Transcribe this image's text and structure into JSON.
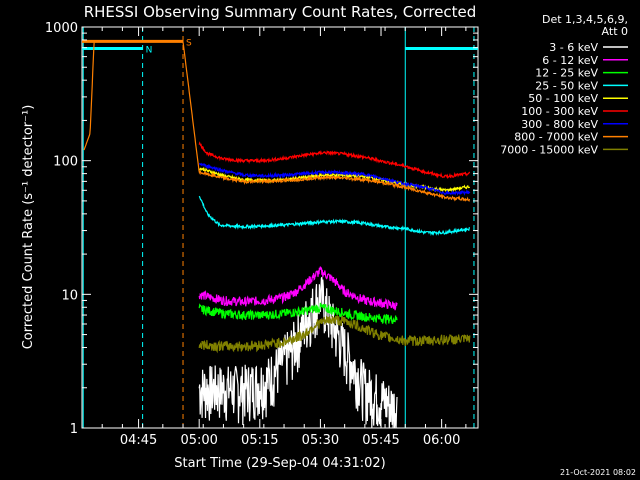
{
  "chart_data": {
    "type": "line",
    "title": "RHESSI Observing Summary Count Rates, Corrected",
    "xlabel": "Start Time (29-Sep-04 04:31:02)",
    "ylabel": "Corrected Count Rate (s⁻¹ detector⁻¹)",
    "yscale": "log",
    "ylim": [
      1,
      1000
    ],
    "xlim_minutes_after_0431": [
      0,
      98
    ],
    "x_ticks": [
      {
        "label": "04:45",
        "min": 14
      },
      {
        "label": "05:00",
        "min": 29
      },
      {
        "label": "05:15",
        "min": 44
      },
      {
        "label": "05:30",
        "min": 59
      },
      {
        "label": "05:45",
        "min": 74
      },
      {
        "label": "06:00",
        "min": 89
      }
    ],
    "y_ticks": [
      {
        "label": "1",
        "value": 1
      },
      {
        "label": "10",
        "value": 10
      },
      {
        "label": "100",
        "value": 100
      },
      {
        "label": "1000",
        "value": 1000
      }
    ],
    "legend_header": [
      "Det 1,3,4,5,6,9,",
      "Att 0"
    ],
    "legend_position": "right-outside",
    "series": [
      {
        "name": "3 - 6 keV",
        "color": "#ffffff",
        "x": [
          29,
          34,
          40,
          46,
          52,
          56,
          59,
          62,
          65,
          70,
          75,
          78
        ],
        "y": [
          2,
          2,
          2,
          2.3,
          4,
          7,
          10,
          6,
          4,
          2,
          1.6,
          1.4
        ]
      },
      {
        "name": "6 - 12 keV",
        "color": "#ff00ff",
        "x": [
          29,
          35,
          40,
          45,
          50,
          53,
          56,
          59,
          62,
          65,
          70,
          75,
          78
        ],
        "y": [
          10,
          9,
          8.8,
          9,
          9.5,
          10.5,
          12.5,
          15,
          13,
          10.5,
          9,
          8.5,
          8.2
        ]
      },
      {
        "name": "12 - 25 keV",
        "color": "#00ff00",
        "x": [
          29,
          35,
          40,
          45,
          50,
          55,
          59,
          63,
          67,
          72,
          78
        ],
        "y": [
          7.8,
          7.2,
          7,
          7,
          7.2,
          7.5,
          8,
          7.5,
          7,
          6.7,
          6.5
        ]
      },
      {
        "name": "25 - 50 keV",
        "color": "#00ffff",
        "x": [
          29,
          31,
          34,
          40,
          45,
          50,
          55,
          60,
          65,
          70,
          75,
          80,
          85,
          90,
          96
        ],
        "y": [
          55,
          40,
          33,
          32,
          32.5,
          33,
          34,
          35,
          35,
          34,
          32,
          31,
          29,
          29,
          31
        ]
      },
      {
        "name": "50 - 100 keV",
        "color": "#ffff00",
        "x": [
          29,
          35,
          40,
          45,
          50,
          55,
          60,
          65,
          70,
          75,
          80,
          85,
          90,
          96
        ],
        "y": [
          88,
          77,
          72,
          71,
          72,
          75,
          78,
          78,
          76,
          71,
          66,
          63,
          60,
          64
        ]
      },
      {
        "name": "100 - 300 keV",
        "color": "#ff0000",
        "x": [
          29,
          31,
          35,
          40,
          45,
          50,
          55,
          60,
          65,
          70,
          75,
          80,
          85,
          90,
          96
        ],
        "y": [
          135,
          113,
          103,
          100,
          100,
          104,
          110,
          115,
          112,
          106,
          98,
          91,
          82,
          76,
          80
        ]
      },
      {
        "name": "300 - 800 keV",
        "color": "#0000ff",
        "x": [
          29,
          35,
          40,
          45,
          50,
          55,
          60,
          65,
          70,
          75,
          80,
          85,
          90,
          96
        ],
        "y": [
          95,
          84,
          78,
          77,
          78,
          80,
          82,
          81,
          79,
          73,
          67,
          63,
          57,
          58
        ]
      },
      {
        "name": "800 - 7000 keV",
        "color": "#ff8000",
        "x": [
          0.5,
          2,
          3,
          25,
          29,
          35,
          40,
          45,
          50,
          55,
          60,
          65,
          70,
          75,
          80,
          85,
          90,
          96
        ],
        "y": [
          120,
          160,
          780,
          780,
          82,
          74,
          70,
          70,
          71,
          73,
          75,
          74,
          72,
          68,
          63,
          58,
          53,
          51
        ]
      },
      {
        "name": "7000 - 15000 keV",
        "color": "#808000",
        "x": [
          29,
          35,
          40,
          45,
          50,
          55,
          58,
          62,
          66,
          70,
          75,
          80,
          85,
          90,
          96
        ],
        "y": [
          4.2,
          4.1,
          4.1,
          4.2,
          4.4,
          5,
          6,
          6.5,
          6.2,
          5.5,
          4.8,
          4.5,
          4.5,
          4.6,
          4.6
        ]
      }
    ],
    "markers": [
      {
        "label": "S",
        "color": "#ff8000",
        "x": [
          -1,
          25
        ],
        "y": 780
      },
      {
        "label": "N",
        "color": "#00ffff",
        "x": [
          -1,
          15
        ],
        "y": 690
      },
      {
        "label": "",
        "color": "#00ffff",
        "x": [
          80,
          98
        ],
        "y": 690
      }
    ],
    "vertical_lines": [
      {
        "color": "#00ffff",
        "dashed": false,
        "x": 0.3
      },
      {
        "color": "#00ffff",
        "dashed": true,
        "x": 15
      },
      {
        "color": "#ff8000",
        "dashed": true,
        "x": 25
      },
      {
        "color": "#00ffff",
        "dashed": false,
        "x": 80
      },
      {
        "color": "#00ffff",
        "dashed": true,
        "x": 97
      }
    ]
  },
  "footer_timestamp": "21-Oct-2021 08:02"
}
